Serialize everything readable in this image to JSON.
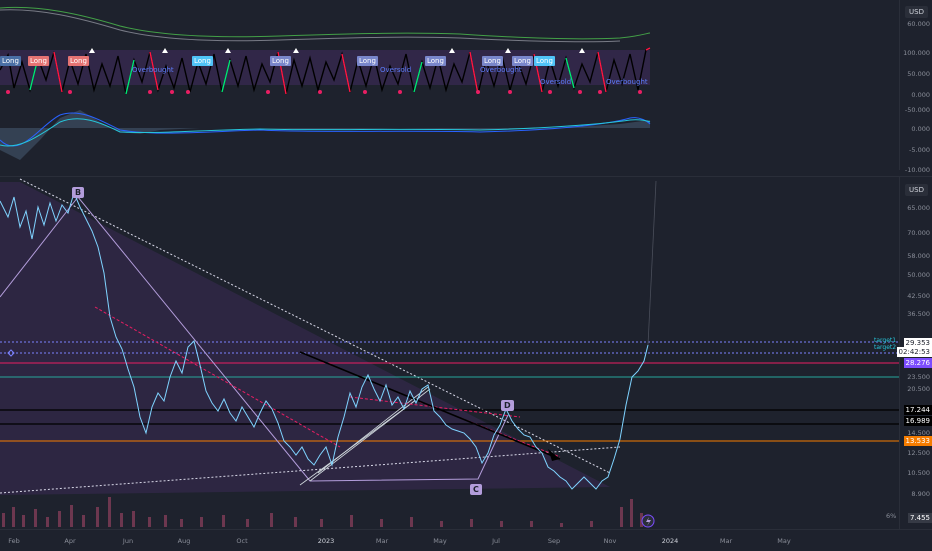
{
  "currency_labels": [
    "USD",
    "USD"
  ],
  "pane1": {
    "ticks": [
      "60.000",
      "100.000",
      "50.000",
      "0.000",
      "-50.000",
      "0.000",
      "-5.000",
      "-10.000"
    ],
    "signals": [
      "Long",
      "Long",
      "Long",
      "Long",
      "Long",
      "Long",
      "Long",
      "Long",
      "Long",
      "Long"
    ],
    "overlay_text": [
      "Overbought",
      "Oversold",
      "Overbought",
      "Overbought",
      "Oversold"
    ]
  },
  "main": {
    "ticks": [
      "65.000",
      "70.000",
      "58.000",
      "50.000",
      "42.500",
      "36.500",
      "23.500",
      "20.500",
      "14.500",
      "12.500",
      "10.500",
      "8.900"
    ],
    "price_tags": {
      "last": "29.353",
      "countdown": "02:42:53",
      "level_purple": "28.276",
      "level_a": "17.244",
      "level_b": "16.989",
      "level_orange": "13.533",
      "volume": "7.455"
    },
    "wave_labels": [
      "B",
      "C",
      "D"
    ],
    "target_labels": [
      "target1",
      "target2"
    ],
    "volume_pct": "6%"
  },
  "time_axis": [
    "Feb",
    "Apr",
    "Jun",
    "Aug",
    "Oct",
    "2023",
    "Mar",
    "May",
    "Jul",
    "Sep",
    "Nov",
    "2024",
    "Mar",
    "May"
  ],
  "colors": {
    "background": "#1e222d",
    "price": "#7fd3ff",
    "purple": "#7c4dff",
    "orange": "#f57c00",
    "pink": "#e91e63"
  }
}
